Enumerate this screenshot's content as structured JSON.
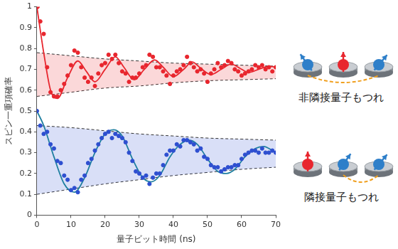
{
  "chart_data": {
    "type": "scatter",
    "x_label": "量子ビット時間 (ns)",
    "y_label": "スピン一重項確率",
    "xlim": [
      0,
      70
    ],
    "xticks": [
      0,
      10,
      20,
      30,
      40,
      50,
      60,
      70
    ],
    "ylim": [
      0,
      1
    ],
    "yticks": [
      0,
      0.1,
      0.2,
      0.3,
      0.4,
      0.5,
      0.6,
      0.7,
      0.8,
      0.9,
      1
    ],
    "grid": false,
    "series": [
      {
        "annotation": "非隣接量子もつれ",
        "color": "#e8262e",
        "marker": "circle",
        "x": [
          0.2,
          1,
          2,
          3,
          4,
          5,
          6,
          7,
          8,
          9,
          10,
          11,
          12,
          13,
          14,
          15,
          16,
          17,
          18,
          19,
          20,
          21,
          22,
          23,
          24,
          25,
          26,
          27,
          28,
          29,
          30,
          31,
          32,
          33,
          34,
          35,
          36,
          37,
          38,
          39,
          40,
          41,
          42,
          43,
          44,
          45,
          46,
          47,
          48,
          49,
          50,
          51,
          52,
          53,
          54,
          55,
          56,
          57,
          58,
          59,
          60,
          61,
          62,
          63,
          64,
          65,
          66,
          67,
          68,
          69,
          70
        ],
        "values": [
          1.0,
          0.93,
          0.87,
          0.71,
          0.59,
          0.57,
          0.57,
          0.6,
          0.63,
          0.67,
          0.72,
          0.79,
          0.78,
          0.71,
          0.66,
          0.64,
          0.66,
          0.62,
          0.68,
          0.72,
          0.73,
          0.77,
          0.75,
          0.77,
          0.73,
          0.69,
          0.68,
          0.64,
          0.66,
          0.66,
          0.68,
          0.71,
          0.72,
          0.77,
          0.76,
          0.71,
          0.71,
          0.69,
          0.67,
          0.63,
          0.67,
          0.69,
          0.7,
          0.72,
          0.76,
          0.73,
          0.71,
          0.69,
          0.7,
          0.68,
          0.64,
          0.68,
          0.7,
          0.73,
          0.71,
          0.72,
          0.74,
          0.73,
          0.7,
          0.69,
          0.67,
          0.68,
          0.69,
          0.7,
          0.72,
          0.71,
          0.72,
          0.7,
          0.71,
          0.69,
          0.71
        ],
        "fit": {
          "color": "#e8262e",
          "x": [
            0,
            2,
            4,
            6,
            9,
            12,
            14.5,
            17,
            20,
            23,
            25.5,
            28.5,
            31.5,
            34.5,
            37,
            40,
            43,
            45.5,
            48,
            51,
            54,
            57,
            59.5,
            62,
            65,
            68,
            70
          ],
          "values": [
            1.0,
            0.78,
            0.6,
            0.56,
            0.66,
            0.74,
            0.69,
            0.64,
            0.7,
            0.76,
            0.71,
            0.65,
            0.7,
            0.745,
            0.71,
            0.665,
            0.7,
            0.735,
            0.705,
            0.675,
            0.7,
            0.725,
            0.705,
            0.685,
            0.7,
            0.715,
            0.71
          ]
        },
        "envelope": {
          "x": [
            0,
            10,
            20,
            30,
            40,
            50,
            60,
            70
          ],
          "upper": [
            0.78,
            0.765,
            0.75,
            0.74,
            0.73,
            0.725,
            0.72,
            0.715
          ],
          "lower": [
            0.57,
            0.59,
            0.61,
            0.62,
            0.635,
            0.645,
            0.65,
            0.655
          ]
        }
      },
      {
        "annotation": "隣接量子もつれ",
        "color": "#2e4fd0",
        "marker": "circle",
        "x": [
          0,
          1,
          2,
          3,
          4,
          5,
          6,
          7,
          8,
          9,
          10,
          11,
          12,
          13,
          14,
          15,
          16,
          17,
          18,
          19,
          20,
          21,
          22,
          23,
          24,
          25,
          26,
          27,
          28,
          29,
          30,
          31,
          32,
          33,
          34,
          35,
          36,
          37,
          38,
          39,
          40,
          41,
          42,
          43,
          44,
          45,
          46,
          47,
          48,
          49,
          50,
          51,
          52,
          53,
          54,
          55,
          56,
          57,
          58,
          59,
          60,
          61,
          62,
          63,
          64,
          65,
          66,
          67,
          68,
          69,
          70
        ],
        "values": [
          0.5,
          0.43,
          0.39,
          0.4,
          0.34,
          0.32,
          0.26,
          0.25,
          0.19,
          0.17,
          0.12,
          0.13,
          0.11,
          0.17,
          0.19,
          0.25,
          0.27,
          0.31,
          0.34,
          0.37,
          0.39,
          0.4,
          0.37,
          0.39,
          0.38,
          0.37,
          0.35,
          0.3,
          0.26,
          0.21,
          0.2,
          0.18,
          0.19,
          0.15,
          0.18,
          0.2,
          0.2,
          0.24,
          0.29,
          0.31,
          0.31,
          0.34,
          0.33,
          0.36,
          0.36,
          0.35,
          0.34,
          0.31,
          0.32,
          0.28,
          0.27,
          0.24,
          0.23,
          0.23,
          0.21,
          0.22,
          0.23,
          0.23,
          0.24,
          0.24,
          0.27,
          0.29,
          0.3,
          0.31,
          0.31,
          0.3,
          0.32,
          0.3,
          0.3,
          0.31,
          0.3
        ],
        "fit": {
          "color": "#1f7fa0",
          "x": [
            0,
            2,
            5,
            8,
            11,
            14,
            17,
            20,
            22.5,
            25,
            28,
            31,
            33.5,
            36,
            39,
            42,
            44.5,
            47,
            50,
            53,
            55.5,
            58,
            61,
            64,
            66.5,
            69,
            70
          ],
          "values": [
            0.5,
            0.43,
            0.28,
            0.15,
            0.11,
            0.18,
            0.3,
            0.39,
            0.41,
            0.38,
            0.27,
            0.18,
            0.16,
            0.19,
            0.28,
            0.34,
            0.36,
            0.34,
            0.27,
            0.21,
            0.2,
            0.22,
            0.28,
            0.32,
            0.33,
            0.31,
            0.3
          ]
        },
        "envelope": {
          "x": [
            0,
            10,
            20,
            30,
            40,
            50,
            60,
            70
          ],
          "upper": [
            0.43,
            0.42,
            0.405,
            0.39,
            0.38,
            0.37,
            0.365,
            0.36
          ],
          "lower": [
            0.1,
            0.125,
            0.15,
            0.17,
            0.19,
            0.205,
            0.22,
            0.23
          ]
        }
      }
    ]
  }
}
